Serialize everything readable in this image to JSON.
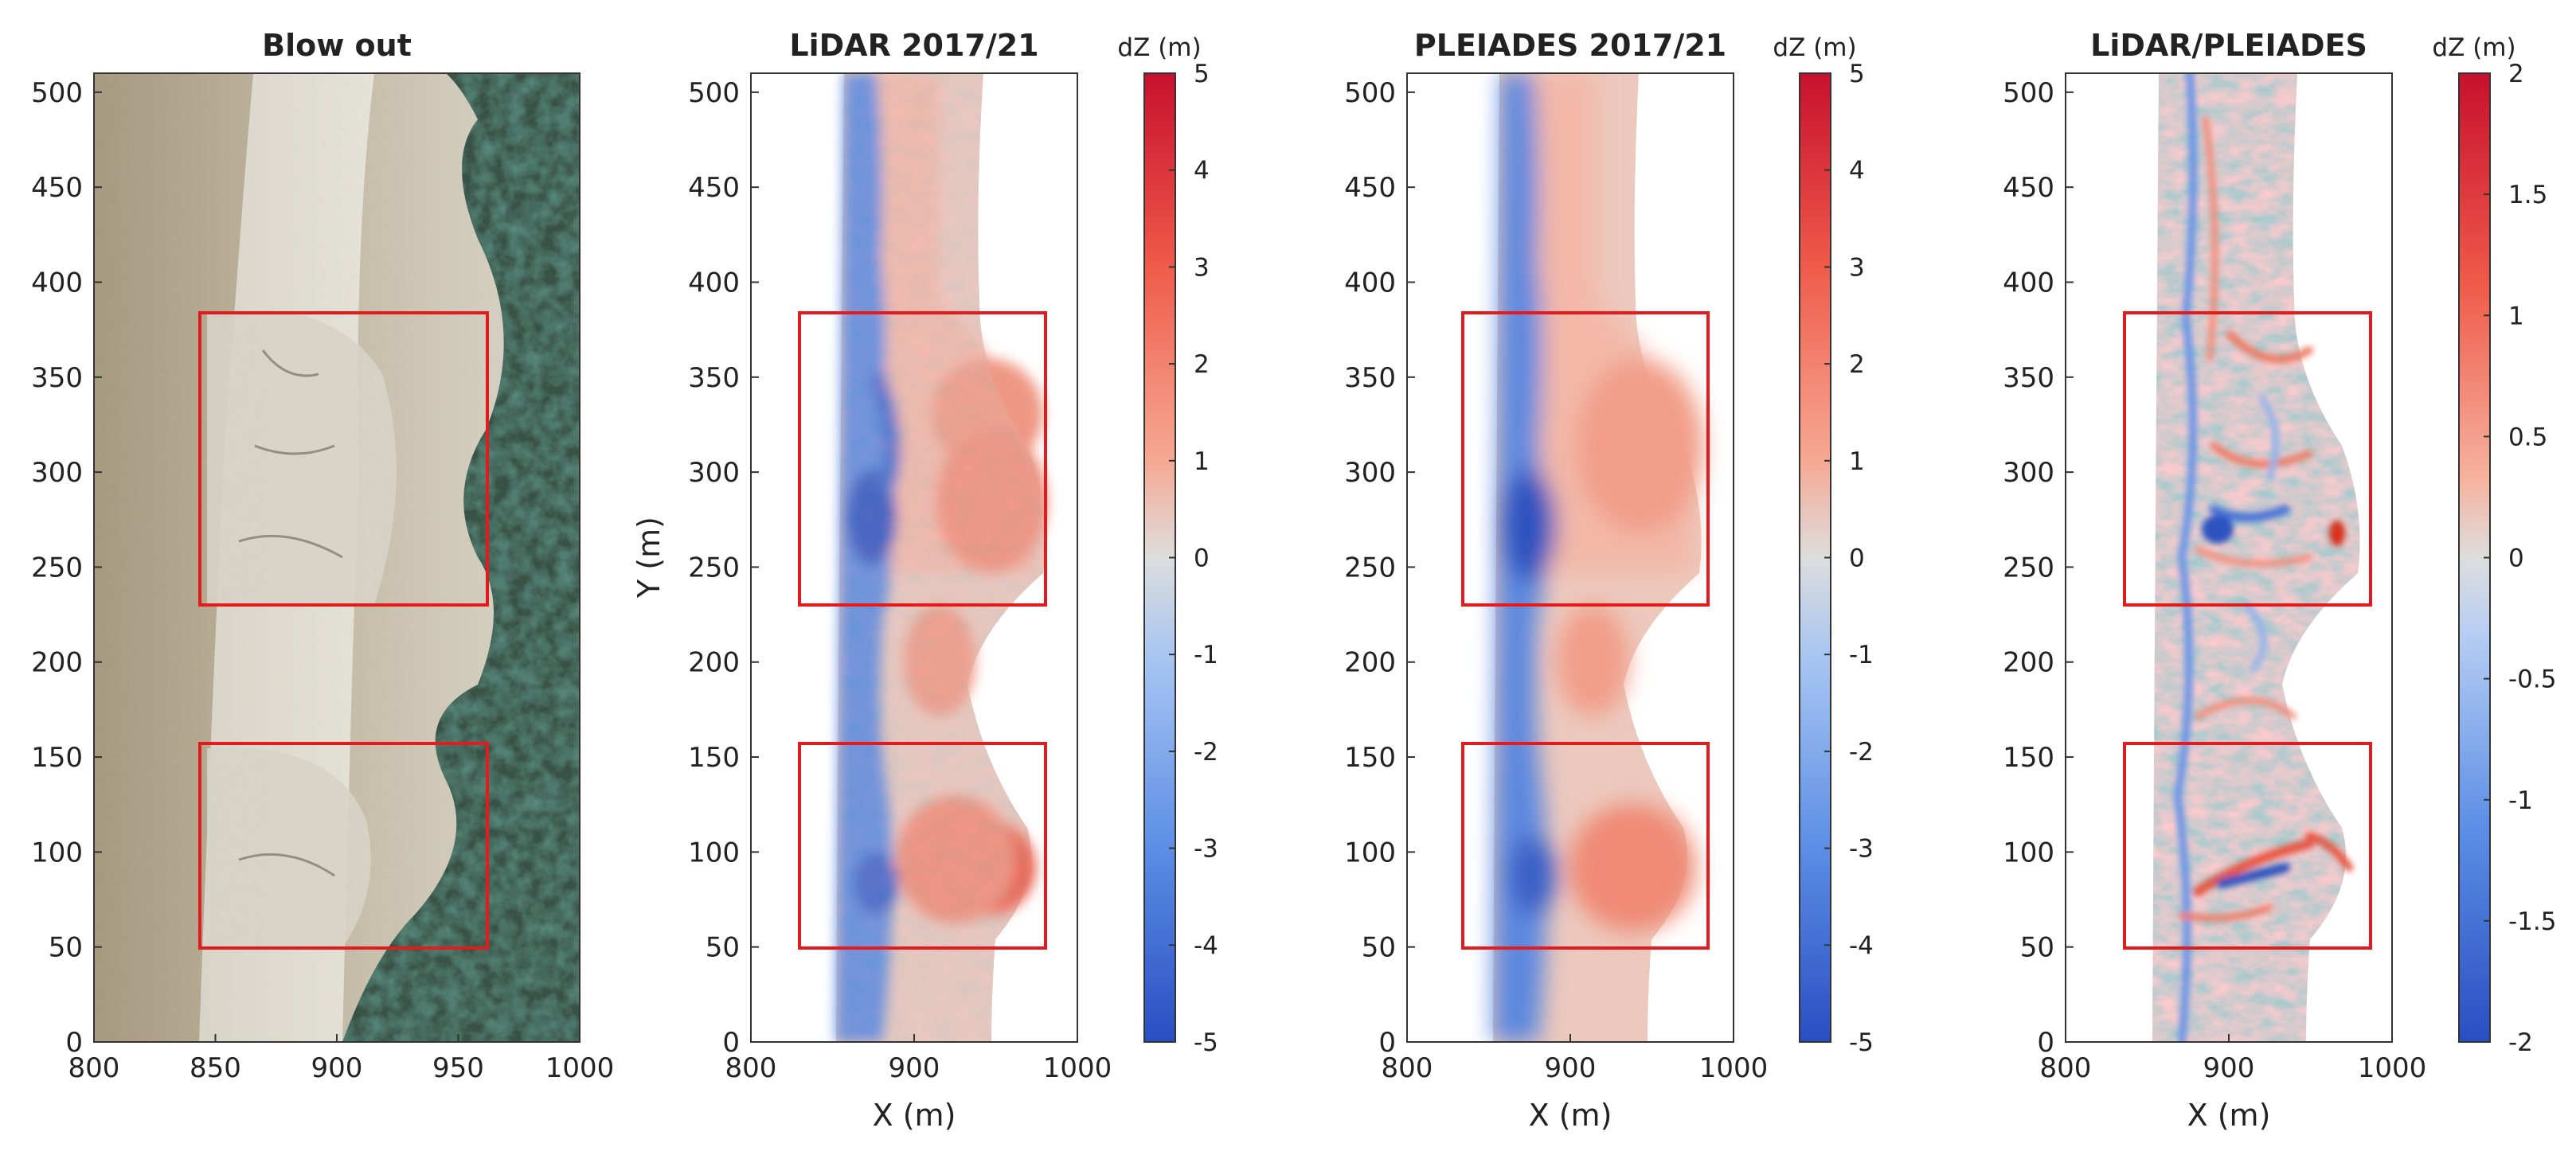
{
  "figure": {
    "panels": [
      {
        "title": "Blow out",
        "kind": "photo",
        "xlabel": "",
        "ylabel": "",
        "xticks": [
          "800",
          "850",
          "900",
          "950",
          "1000"
        ],
        "yticks": [
          "0",
          "50",
          "100",
          "150",
          "200",
          "250",
          "300",
          "350",
          "400",
          "450",
          "500"
        ]
      },
      {
        "title": "LiDAR 2017/21",
        "kind": "dz",
        "xlabel": "X (m)",
        "ylabel": "Y (m)",
        "xticks": [
          "800",
          "900",
          "1000"
        ],
        "yticks": [
          "0",
          "50",
          "100",
          "150",
          "200",
          "250",
          "300",
          "350",
          "400",
          "450",
          "500"
        ],
        "colorbar": {
          "label": "dZ (m)",
          "ticks": [
            "5",
            "4",
            "3",
            "2",
            "1",
            "0",
            "-1",
            "-2",
            "-3",
            "-4",
            "-5"
          ]
        }
      },
      {
        "title": "PLEIADES 2017/21",
        "kind": "dz",
        "xlabel": "X (m)",
        "ylabel": "",
        "xticks": [
          "800",
          "900",
          "1000"
        ],
        "yticks": [
          "0",
          "50",
          "100",
          "150",
          "200",
          "250",
          "300",
          "350",
          "400",
          "450",
          "500"
        ],
        "colorbar": {
          "label": "dZ (m)",
          "ticks": [
            "5",
            "4",
            "3",
            "2",
            "1",
            "0",
            "-1",
            "-2",
            "-3",
            "-4",
            "-5"
          ]
        }
      },
      {
        "title": "LiDAR/PLEIADES",
        "kind": "diff",
        "xlabel": "X (m)",
        "ylabel": "",
        "xticks": [
          "800",
          "900",
          "1000"
        ],
        "yticks": [
          "0",
          "50",
          "100",
          "150",
          "200",
          "250",
          "300",
          "350",
          "400",
          "450",
          "500"
        ],
        "colorbar": {
          "label": "dZ (m)",
          "ticks": [
            "2",
            "1.5",
            "1",
            "0.5",
            "0",
            "-0.5",
            "-1",
            "-1.5",
            "-2"
          ]
        }
      }
    ]
  },
  "chart_data": [
    {
      "type": "heatmap",
      "title": "Blow out",
      "xlabel": "",
      "ylabel": "",
      "xlim": [
        800,
        1000
      ],
      "ylim": [
        0,
        510
      ],
      "content": "aerial photograph",
      "highlight_boxes": [
        {
          "x": [
            845,
            963
          ],
          "y": [
            229,
            382
          ]
        },
        {
          "x": [
            845,
            963
          ],
          "y": [
            52,
            158
          ]
        }
      ]
    },
    {
      "type": "heatmap",
      "title": "LiDAR 2017/21",
      "xlabel": "X (m)",
      "ylabel": "Y (m)",
      "xlim": [
        800,
        1000
      ],
      "ylim": [
        0,
        510
      ],
      "colorbar": {
        "label": "dZ (m)",
        "range": [
          -5,
          5
        ]
      },
      "highlight_boxes": [
        {
          "x": [
            831,
            985
          ],
          "y": [
            229,
            382
          ]
        },
        {
          "x": [
            831,
            985
          ],
          "y": [
            52,
            158
          ]
        }
      ]
    },
    {
      "type": "heatmap",
      "title": "PLEIADES 2017/21",
      "xlabel": "X (m)",
      "ylabel": "",
      "xlim": [
        800,
        1000
      ],
      "ylim": [
        0,
        510
      ],
      "colorbar": {
        "label": "dZ (m)",
        "range": [
          -5,
          5
        ]
      },
      "highlight_boxes": [
        {
          "x": [
            834,
            988
          ],
          "y": [
            229,
            382
          ]
        },
        {
          "x": [
            834,
            988
          ],
          "y": [
            52,
            158
          ]
        }
      ]
    },
    {
      "type": "heatmap",
      "title": "LiDAR/PLEIADES",
      "xlabel": "X (m)",
      "ylabel": "",
      "xlim": [
        800,
        1000
      ],
      "ylim": [
        0,
        510
      ],
      "colorbar": {
        "label": "dZ (m)",
        "range": [
          -2,
          2
        ]
      },
      "highlight_boxes": [
        {
          "x": [
            836,
            990
          ],
          "y": [
            229,
            382
          ]
        },
        {
          "x": [
            836,
            990
          ],
          "y": [
            52,
            158
          ]
        }
      ]
    }
  ]
}
